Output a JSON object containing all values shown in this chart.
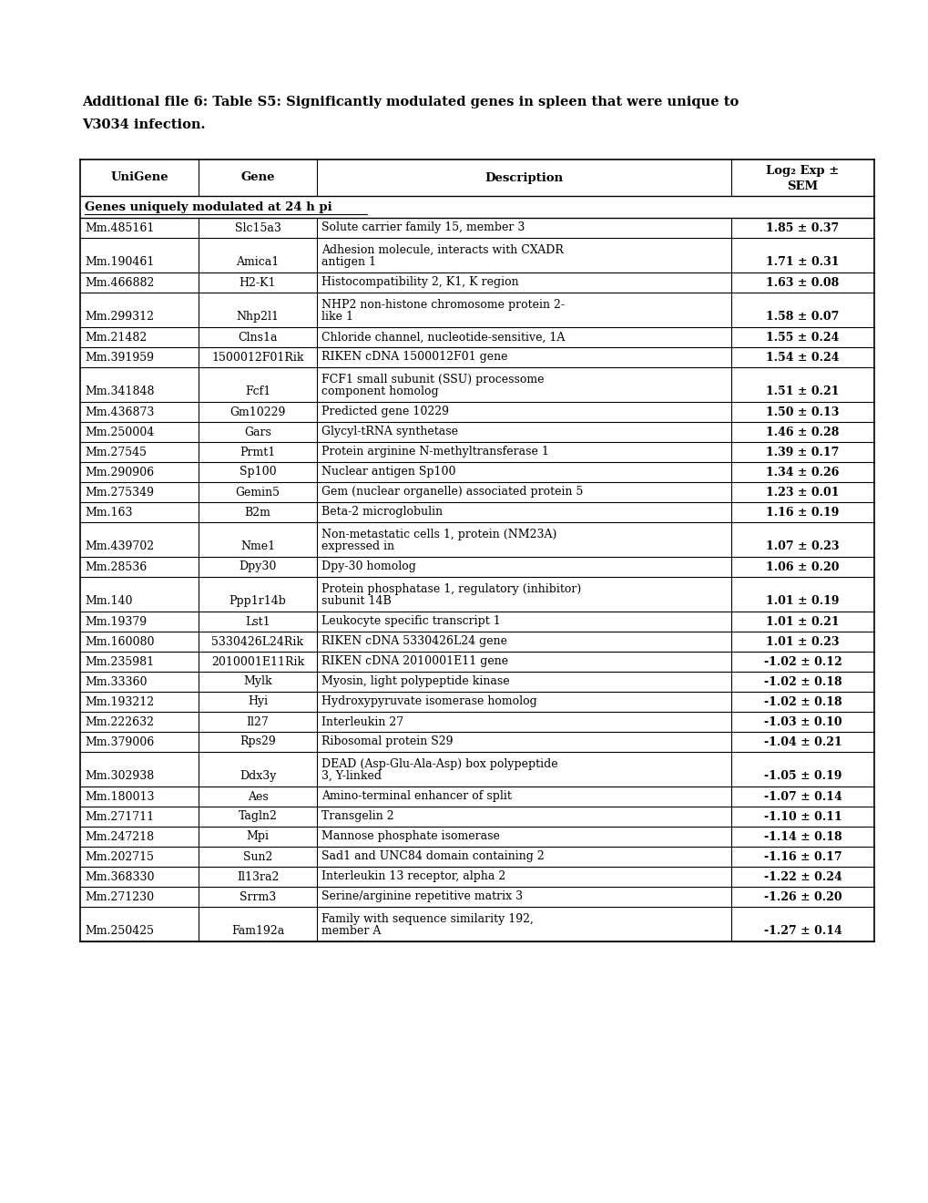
{
  "title_line1": "Additional file 6: Table S5: Significantly modulated genes in spleen that were unique to",
  "title_line2": "V3034 infection.",
  "col_headers": [
    "UniGene",
    "Gene",
    "Description",
    "Log₂ Exp ±\nSEM"
  ],
  "section_header": "Genes uniquely modulated at 24 h pi",
  "rows": [
    {
      "unigene": "Mm.485161",
      "gene": "Slc15a3",
      "desc1": "Solute carrier family 15, member 3",
      "desc2": "",
      "value": "1.85 ± 0.37"
    },
    {
      "unigene": "Mm.190461",
      "gene": "Amica1",
      "desc1": "Adhesion molecule, interacts with CXADR",
      "desc2": "antigen 1",
      "value": "1.71 ± 0.31"
    },
    {
      "unigene": "Mm.466882",
      "gene": "H2-K1",
      "desc1": "Histocompatibility 2, K1, K region",
      "desc2": "",
      "value": "1.63 ± 0.08"
    },
    {
      "unigene": "Mm.299312",
      "gene": "Nhp2l1",
      "desc1": "NHP2 non-histone chromosome protein 2-",
      "desc2": "like 1",
      "value": "1.58 ± 0.07"
    },
    {
      "unigene": "Mm.21482",
      "gene": "Clns1a",
      "desc1": "Chloride channel, nucleotide-sensitive, 1A",
      "desc2": "",
      "value": "1.55 ± 0.24"
    },
    {
      "unigene": "Mm.391959",
      "gene": "1500012F01Rik",
      "desc1": "RIKEN cDNA 1500012F01 gene",
      "desc2": "",
      "value": "1.54 ± 0.24"
    },
    {
      "unigene": "Mm.341848",
      "gene": "Fcf1",
      "desc1": "FCF1 small subunit (SSU) processome",
      "desc2": "component homolog",
      "value": "1.51 ± 0.21"
    },
    {
      "unigene": "Mm.436873",
      "gene": "Gm10229",
      "desc1": "Predicted gene 10229",
      "desc2": "",
      "value": "1.50 ± 0.13"
    },
    {
      "unigene": "Mm.250004",
      "gene": "Gars",
      "desc1": "Glycyl-tRNA synthetase",
      "desc2": "",
      "value": "1.46 ± 0.28"
    },
    {
      "unigene": "Mm.27545",
      "gene": "Prmt1",
      "desc1": "Protein arginine N-methyltransferase 1",
      "desc2": "",
      "value": "1.39 ± 0.17"
    },
    {
      "unigene": "Mm.290906",
      "gene": "Sp100",
      "desc1": "Nuclear antigen Sp100",
      "desc2": "",
      "value": "1.34 ± 0.26"
    },
    {
      "unigene": "Mm.275349",
      "gene": "Gemin5",
      "desc1": "Gem (nuclear organelle) associated protein 5",
      "desc2": "",
      "value": "1.23 ± 0.01"
    },
    {
      "unigene": "Mm.163",
      "gene": "B2m",
      "desc1": "Beta-2 microglobulin",
      "desc2": "",
      "value": "1.16 ± 0.19"
    },
    {
      "unigene": "Mm.439702",
      "gene": "Nme1",
      "desc1": "Non-metastatic cells 1, protein (NM23A)",
      "desc2": "expressed in",
      "value": "1.07 ± 0.23"
    },
    {
      "unigene": "Mm.28536",
      "gene": "Dpy30",
      "desc1": "Dpy-30 homolog",
      "desc2": "",
      "value": "1.06 ± 0.20"
    },
    {
      "unigene": "Mm.140",
      "gene": "Ppp1r14b",
      "desc1": "Protein phosphatase 1, regulatory (inhibitor)",
      "desc2": "subunit 14B",
      "value": "1.01 ± 0.19"
    },
    {
      "unigene": "Mm.19379",
      "gene": "Lst1",
      "desc1": "Leukocyte specific transcript 1",
      "desc2": "",
      "value": "1.01 ± 0.21"
    },
    {
      "unigene": "Mm.160080",
      "gene": "5330426L24Rik",
      "desc1": "RIKEN cDNA 5330426L24 gene",
      "desc2": "",
      "value": "1.01 ± 0.23"
    },
    {
      "unigene": "Mm.235981",
      "gene": "2010001E11Rik",
      "desc1": "RIKEN cDNA 2010001E11 gene",
      "desc2": "",
      "value": "-1.02 ± 0.12"
    },
    {
      "unigene": "Mm.33360",
      "gene": "Mylk",
      "desc1": "Myosin, light polypeptide kinase",
      "desc2": "",
      "value": "-1.02 ± 0.18"
    },
    {
      "unigene": "Mm.193212",
      "gene": "Hyi",
      "desc1": "Hydroxypyruvate isomerase homolog",
      "desc2": "",
      "value": "-1.02 ± 0.18"
    },
    {
      "unigene": "Mm.222632",
      "gene": "Il27",
      "desc1": "Interleukin 27",
      "desc2": "",
      "value": "-1.03 ± 0.10"
    },
    {
      "unigene": "Mm.379006",
      "gene": "Rps29",
      "desc1": "Ribosomal protein S29",
      "desc2": "",
      "value": "-1.04 ± 0.21"
    },
    {
      "unigene": "Mm.302938",
      "gene": "Ddx3y",
      "desc1": "DEAD (Asp-Glu-Ala-Asp) box polypeptide",
      "desc2": "3, Y-linked",
      "value": "-1.05 ± 0.19"
    },
    {
      "unigene": "Mm.180013",
      "gene": "Aes",
      "desc1": "Amino-terminal enhancer of split",
      "desc2": "",
      "value": "-1.07 ± 0.14"
    },
    {
      "unigene": "Mm.271711",
      "gene": "Tagln2",
      "desc1": "Transgelin 2",
      "desc2": "",
      "value": "-1.10 ± 0.11"
    },
    {
      "unigene": "Mm.247218",
      "gene": "Mpi",
      "desc1": "Mannose phosphate isomerase",
      "desc2": "",
      "value": "-1.14 ± 0.18"
    },
    {
      "unigene": "Mm.202715",
      "gene": "Sun2",
      "desc1": "Sad1 and UNC84 domain containing 2",
      "desc2": "",
      "value": "-1.16 ± 0.17"
    },
    {
      "unigene": "Mm.368330",
      "gene": "Il13ra2",
      "desc1": "Interleukin 13 receptor, alpha 2",
      "desc2": "",
      "value": "-1.22 ± 0.24"
    },
    {
      "unigene": "Mm.271230",
      "gene": "Srrm3",
      "desc1": "Serine/arginine repetitive matrix 3",
      "desc2": "",
      "value": "-1.26 ± 0.20"
    },
    {
      "unigene": "Mm.250425",
      "gene": "Fam192a",
      "desc1": "Family with sequence similarity 192,",
      "desc2": "member A",
      "value": "-1.27 ± 0.14"
    }
  ],
  "bg_color": "#ffffff",
  "text_color": "#000000",
  "border_color": "#000000",
  "font_size": 9.0,
  "header_font_size": 9.5,
  "title_font_size": 10.5
}
